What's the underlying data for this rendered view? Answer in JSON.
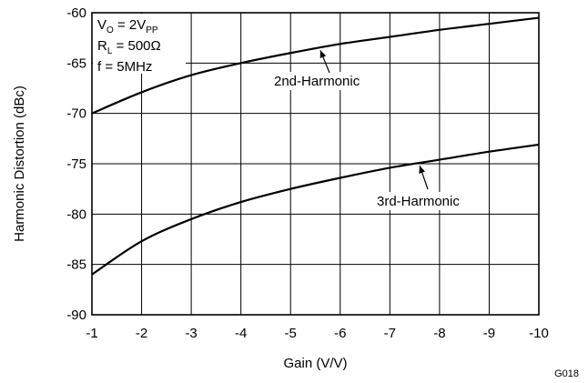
{
  "chart_data": {
    "type": "line",
    "xlabel": "Gain (V/V)",
    "ylabel": "Harmonic Distortion (dBc)",
    "figure_id": "G018",
    "xlim": [
      -1,
      -10
    ],
    "ylim": [
      -90,
      -60
    ],
    "x_ticks": [
      -1,
      -2,
      -3,
      -4,
      -5,
      -6,
      -7,
      -8,
      -9,
      -10
    ],
    "y_ticks": [
      -60,
      -65,
      -70,
      -75,
      -80,
      -85,
      -90
    ],
    "grid": true,
    "conditions": {
      "vo": {
        "main": "V",
        "sub": "O",
        "mid": " = 2V",
        "sub2": "PP"
      },
      "rl": {
        "main": "R",
        "sub": "L",
        "rest": " = 500Ω"
      },
      "f": "f = 5MHz"
    },
    "series": [
      {
        "name": "2nd-Harmonic",
        "x": [
          -1,
          -2,
          -3,
          -4,
          -5,
          -6,
          -7,
          -8,
          -9,
          -10
        ],
        "y": [
          -70.0,
          -67.9,
          -66.2,
          -65.0,
          -64.0,
          -63.1,
          -62.4,
          -61.7,
          -61.1,
          -60.5
        ]
      },
      {
        "name": "3rd-Harmonic",
        "x": [
          -1,
          -2,
          -3,
          -4,
          -5,
          -6,
          -7,
          -8,
          -9,
          -10
        ],
        "y": [
          -86.0,
          -82.7,
          -80.5,
          -78.8,
          -77.5,
          -76.4,
          -75.4,
          -74.6,
          -73.8,
          -73.1
        ]
      }
    ],
    "annotations": [
      {
        "text": "2nd-Harmonic",
        "series": 0
      },
      {
        "text": "3rd-Harmonic",
        "series": 1
      }
    ]
  }
}
